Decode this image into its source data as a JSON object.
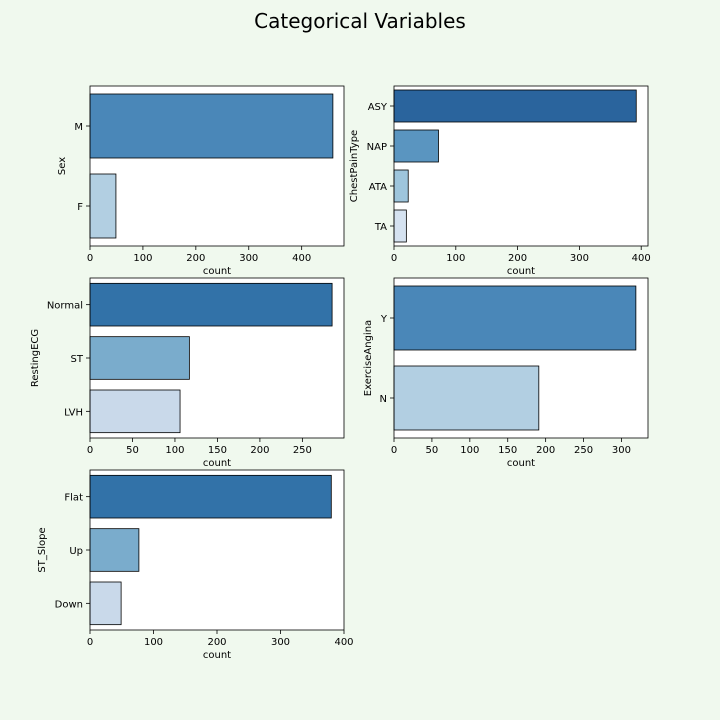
{
  "figure": {
    "title": "Categorical Variables",
    "background": "#f0f9ee"
  },
  "chart_data": [
    {
      "type": "bar",
      "orientation": "horizontal",
      "ylabel": "Sex",
      "xlabel": "count",
      "categories": [
        "M",
        "F"
      ],
      "values": [
        459,
        49
      ],
      "xlim": [
        0,
        480
      ],
      "xticks": [
        0,
        100,
        200,
        300,
        400
      ],
      "colors": [
        "#4a87b8",
        "#b2cfe2"
      ],
      "grid": false
    },
    {
      "type": "bar",
      "orientation": "horizontal",
      "ylabel": "ChestPainType",
      "xlabel": "count",
      "categories": [
        "ASY",
        "NAP",
        "ATA",
        "TA"
      ],
      "values": [
        392,
        72,
        23,
        20
      ],
      "xlim": [
        0,
        411
      ],
      "xticks": [
        0,
        100,
        200,
        300,
        400
      ],
      "colors": [
        "#2a649d",
        "#5a95c0",
        "#9ec5dc",
        "#d5e2f0"
      ],
      "grid": false
    },
    {
      "type": "bar",
      "orientation": "horizontal",
      "ylabel": "RestingECG",
      "xlabel": "count",
      "categories": [
        "Normal",
        "ST",
        "LVH"
      ],
      "values": [
        285,
        117,
        106
      ],
      "xlim": [
        0,
        299
      ],
      "xticks": [
        0,
        50,
        100,
        150,
        200,
        250
      ],
      "colors": [
        "#3272a8",
        "#7aaccc",
        "#c9d9ea"
      ],
      "grid": false
    },
    {
      "type": "bar",
      "orientation": "horizontal",
      "ylabel": "ExerciseAngina",
      "xlabel": "count",
      "categories": [
        "Y",
        "N"
      ],
      "values": [
        319,
        191
      ],
      "xlim": [
        0,
        335
      ],
      "xticks": [
        0,
        50,
        100,
        150,
        200,
        250,
        300
      ],
      "colors": [
        "#4a87b8",
        "#b2cfe2"
      ],
      "grid": false
    },
    {
      "type": "bar",
      "orientation": "horizontal",
      "ylabel": "ST_Slope",
      "xlabel": "count",
      "categories": [
        "Flat",
        "Up",
        "Down"
      ],
      "values": [
        380,
        77,
        49
      ],
      "xlim": [
        0,
        400
      ],
      "xticks": [
        0,
        100,
        200,
        300,
        400
      ],
      "colors": [
        "#3272a8",
        "#7aaccc",
        "#c9d9ea"
      ],
      "grid": false
    }
  ]
}
